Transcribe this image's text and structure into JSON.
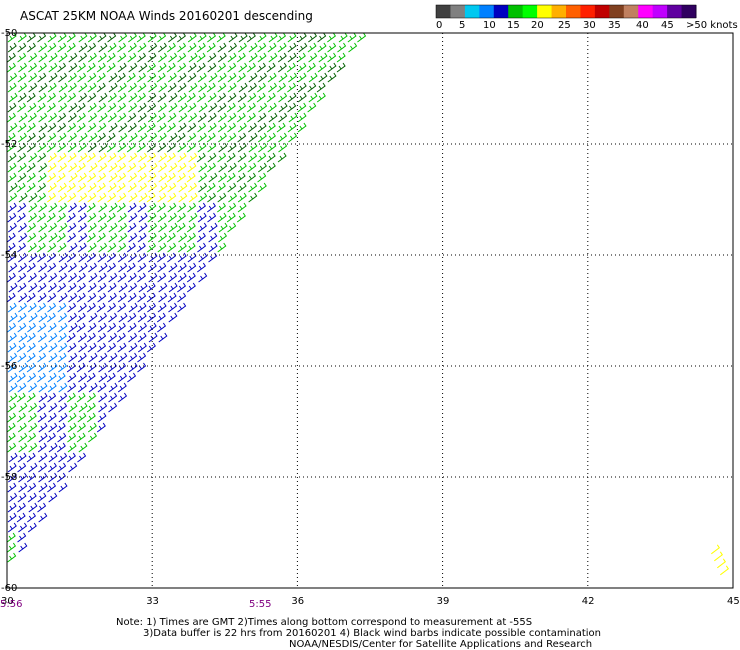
{
  "header": {
    "title": "ASCAT 25KM NOAA Winds 20160201 descending"
  },
  "legend": {
    "labels": [
      "0",
      "5",
      "10",
      "15",
      "20",
      "25",
      "30",
      "35",
      "40",
      "45",
      ">50 knots"
    ],
    "colors": [
      "#404040",
      "#808080",
      "#00c8f0",
      "#0080ff",
      "#0000c0",
      "#00c000",
      "#00ff00",
      "#ffff00",
      "#ffb000",
      "#ff6000",
      "#ff2000",
      "#c00000",
      "#804020",
      "#c08060",
      "#ff00ff",
      "#c000ff",
      "#6000a0",
      "#300060"
    ]
  },
  "map": {
    "lat_labels": [
      "-50",
      "-52",
      "-54",
      "-56",
      "-58",
      "-60"
    ],
    "lon_labels": [
      "30",
      "33",
      "36",
      "39",
      "42",
      "45"
    ],
    "times": [
      "5:56",
      "5:55"
    ],
    "lat_range": [
      -60,
      -50
    ],
    "lon_range": [
      30,
      45
    ],
    "swath": {
      "type": "descending ASCAT swath",
      "east_edge": [
        [
          37.4,
          -50.1
        ],
        [
          30.0,
          -59.7
        ]
      ],
      "small_patch_near": [
        44.8,
        -59.6
      ]
    }
  },
  "notes": {
    "line1": "Note: 1) Times are GMT 2)Times along bottom correspond to measurement at -55S",
    "line2": "3)Data buffer is 22 hrs from 20160201 4) Black wind barbs indicate possible contamination",
    "line3": "NOAA/NESDIS/Center for Satellite Applications and Research"
  }
}
